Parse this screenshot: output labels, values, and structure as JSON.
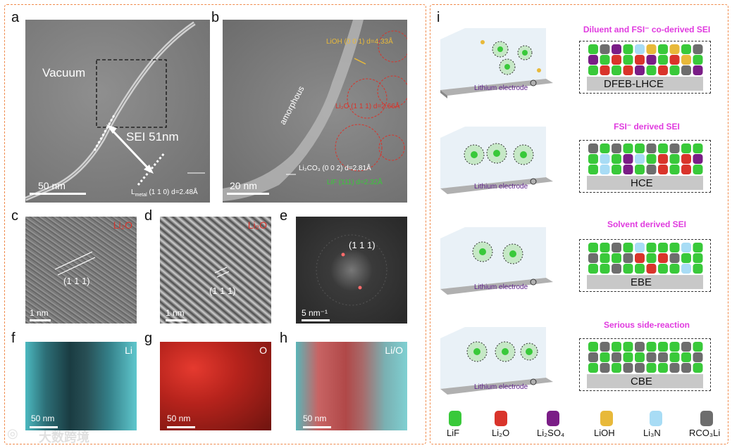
{
  "colors": {
    "LiF": "#39c93a",
    "Li2O": "#d9342b",
    "Li2SO4": "#7a1d86",
    "LiOH": "#e8b93a",
    "Li3N": "#a8dcf5",
    "RCO3Li": "#6d6d6d",
    "frame": "#f08a4b",
    "magenta": "#e03adf"
  },
  "panels": {
    "a": {
      "label": "a",
      "tag": "Vacuum",
      "sei": "SEI 51nm",
      "scale": "50 nm",
      "lattice_prefix": "L",
      "lattice_sub": "metal",
      "lattice_rest": "(1 1 0) d=2.48Å"
    },
    "b": {
      "label": "b",
      "lioh": "LiOH (0 0 1) d=4.33Å",
      "li2o": "Li₂O (1 1 1) d=2.66Å",
      "amorphous": "amorphous",
      "li2co3": "Li₂CO₃ (0 0 2) d=2.81Å",
      "lif": "LiF (111) d=2.32Å",
      "scale": "20 nm"
    },
    "c": {
      "label": "c",
      "tag": "Li₂O",
      "miller": "(1 1 1)",
      "scale": "1 nm"
    },
    "d": {
      "label": "d",
      "tag": "Li₂O",
      "miller": "(1 1 1)",
      "scale": "1 nm"
    },
    "e": {
      "label": "e",
      "miller": "(1 1 1)",
      "scale": "5 nm⁻¹"
    },
    "f": {
      "label": "f",
      "tag": "Li",
      "scale": "50 nm"
    },
    "g": {
      "label": "g",
      "tag": "O",
      "scale": "50 nm"
    },
    "h": {
      "label": "h",
      "tag": "Li/O",
      "scale": "50 nm"
    },
    "i": {
      "label": "i"
    }
  },
  "schemes": [
    {
      "title": "Diluent and FSI⁻ co-derived SEI",
      "electrode": "Lithium electrode",
      "name": "DFEB-LHCE"
    },
    {
      "title": "FSI⁻ derived SEI",
      "electrode": "Lithium electrode",
      "name": "HCE"
    },
    {
      "title": "Solvent derived SEI",
      "electrode": "Lithium electrode",
      "name": "EBE"
    },
    {
      "title": "Serious side-reaction",
      "electrode": "Lithium electrode",
      "name": "CBE"
    }
  ],
  "legend": [
    {
      "key": "LiF",
      "label": "LiF"
    },
    {
      "key": "Li2O",
      "label": "Li₂O"
    },
    {
      "key": "Li2SO4",
      "label": "Li₂SO₄"
    },
    {
      "key": "LiOH",
      "label": "LiOH"
    },
    {
      "key": "Li3N",
      "label": "Li₃N"
    },
    {
      "key": "RCO3Li",
      "label": "RCO₃Li"
    }
  ],
  "watermark": "大数跨境"
}
